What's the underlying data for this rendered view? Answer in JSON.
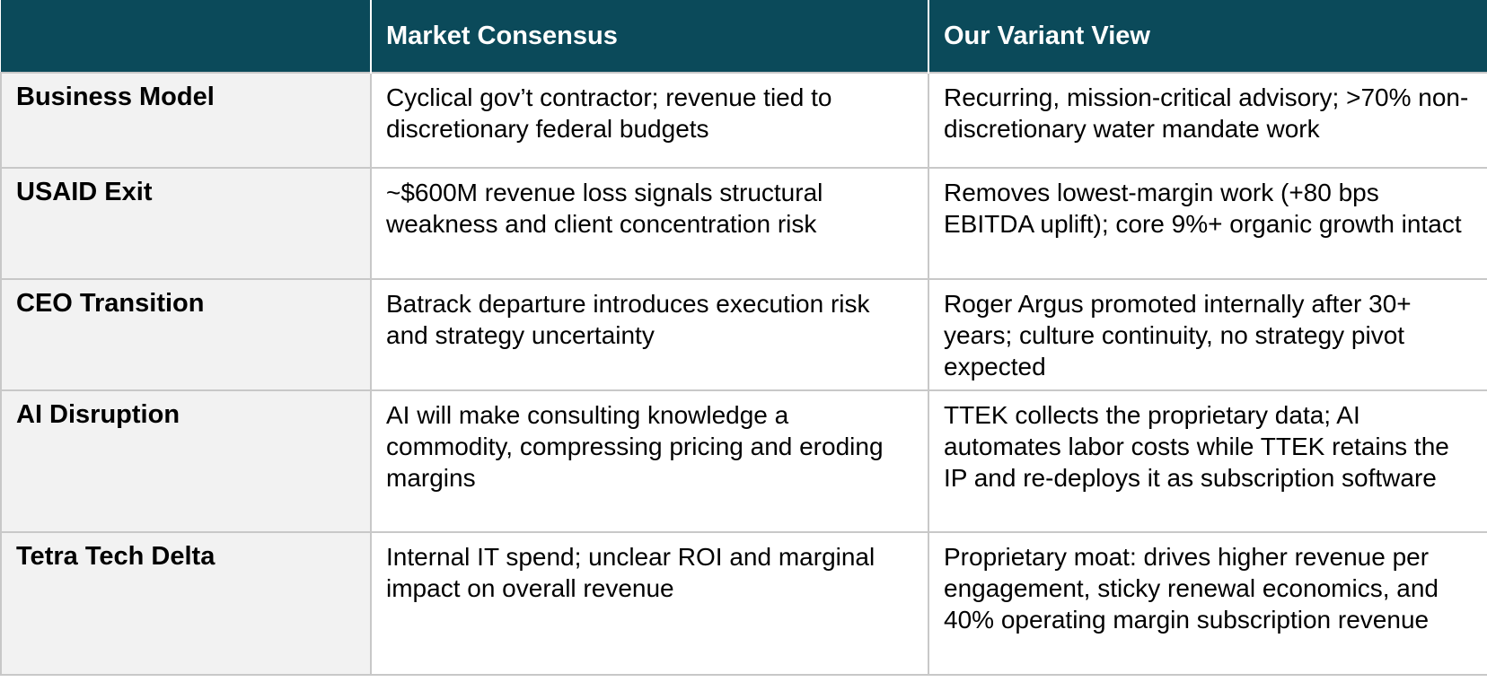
{
  "header": {
    "col1": "",
    "col2": "Market Consensus",
    "col3": "Our Variant View"
  },
  "rows": [
    {
      "label": "Business Model",
      "consensus": "Cyclical gov’t contractor; revenue tied to discretionary federal budgets",
      "variant": "Recurring, mission-critical advisory; >70% non-discretionary water mandate work"
    },
    {
      "label": "USAID Exit",
      "consensus": "~$600M revenue loss signals structural weakness and client concentration risk",
      "variant": "Removes lowest-margin work (+80 bps EBITDA uplift); core 9%+ organic growth intact"
    },
    {
      "label": "CEO Transition",
      "consensus": "Batrack departure introduces execution risk and strategy uncertainty",
      "variant": "Roger Argus promoted internally after 30+ years; culture continuity, no strategy pivot expected"
    },
    {
      "label": "AI Disruption",
      "consensus": "AI will make consulting knowledge a commodity, compressing pricing and eroding margins",
      "variant": "TTEK collects the proprietary data; AI automates labor costs while TTEK retains the IP and re-deploys it as subscription software"
    },
    {
      "label": "Tetra Tech Delta",
      "consensus": "Internal IT spend; unclear ROI and marginal impact on overall revenue",
      "variant": "Proprietary moat: drives higher revenue per engagement, sticky renewal economics, and 40% operating margin subscription revenue"
    }
  ],
  "colors": {
    "header_bg": "#0b4a5a",
    "header_text": "#ffffff",
    "row_label_bg": "#f2f2f2",
    "border": "#c8c8c8"
  }
}
